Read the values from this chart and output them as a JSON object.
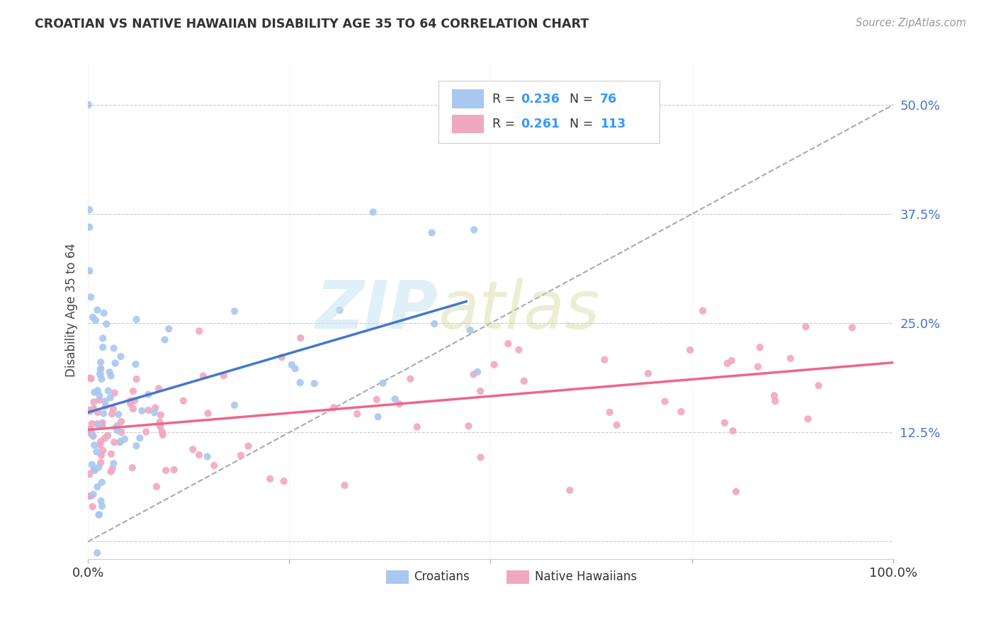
{
  "title": "CROATIAN VS NATIVE HAWAIIAN DISABILITY AGE 35 TO 64 CORRELATION CHART",
  "source": "Source: ZipAtlas.com",
  "ylabel": "Disability Age 35 to 64",
  "xlim": [
    0.0,
    1.0
  ],
  "ylim": [
    -0.02,
    0.55
  ],
  "xticks": [
    0.0,
    0.25,
    0.5,
    0.75,
    1.0
  ],
  "xticklabels": [
    "0.0%",
    "",
    "",
    "",
    "100.0%"
  ],
  "yticks": [
    0.0,
    0.125,
    0.25,
    0.375,
    0.5
  ],
  "yticklabels": [
    "",
    "12.5%",
    "25.0%",
    "37.5%",
    "50.0%"
  ],
  "croatian_R": 0.236,
  "croatian_N": 76,
  "hawaiian_R": 0.261,
  "hawaiian_N": 113,
  "croatian_color": "#a8c8f0",
  "hawaiian_color": "#f0a8c0",
  "croatian_line_color": "#4477cc",
  "hawaiian_line_color": "#ee6688",
  "dashed_line_color": "#aaaaaa",
  "background_color": "#ffffff",
  "croatian_line_x0": 0.0,
  "croatian_line_y0": 0.148,
  "croatian_line_x1": 0.47,
  "croatian_line_y1": 0.275,
  "hawaiian_line_x0": 0.0,
  "hawaiian_line_y0": 0.128,
  "hawaiian_line_x1": 1.0,
  "hawaiian_line_y1": 0.205,
  "dashed_line_x0": 0.0,
  "dashed_line_y0": 0.0,
  "dashed_line_x1": 1.0,
  "dashed_line_y1": 0.5
}
